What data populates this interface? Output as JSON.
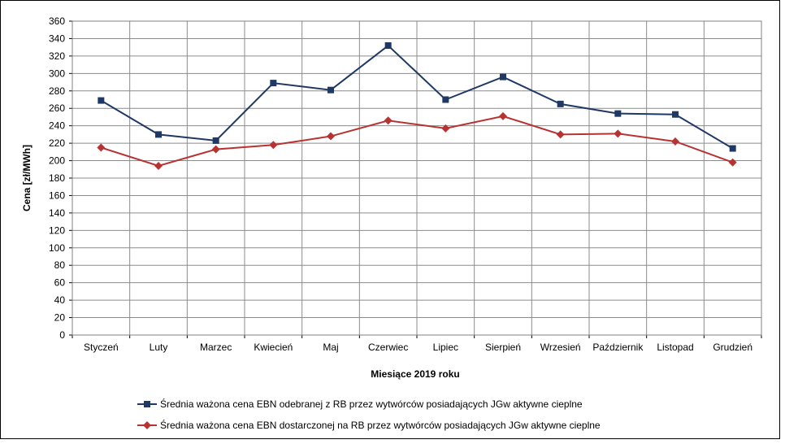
{
  "chart_data": {
    "type": "line",
    "title": "",
    "xlabel": "Miesiące 2019  roku",
    "ylabel": "Cena [zł/MWh]",
    "ylim": [
      0,
      360
    ],
    "ytick_step": 20,
    "grid": true,
    "legend_position": "bottom",
    "categories": [
      "Styczeń",
      "Luty",
      "Marzec",
      "Kwiecień",
      "Maj",
      "Czerwiec",
      "Lipiec",
      "Sierpień",
      "Wrzesień",
      "Październik",
      "Listopad",
      "Grudzień"
    ],
    "series": [
      {
        "name": "Średnia ważona cena EBN odebranej z RB przez wytwórców posiadających JGw aktywne cieplne",
        "color": "#1F3864",
        "marker": "square",
        "values": [
          269,
          230,
          223,
          289,
          281,
          332,
          270,
          296,
          265,
          254,
          253,
          214
        ]
      },
      {
        "name": "Średnia ważona cena EBN dostarczonej na RB przez wytwórców posiadających JGw aktywne cieplne",
        "color": "#B83232",
        "marker": "diamond",
        "values": [
          215,
          194,
          213,
          218,
          228,
          246,
          237,
          251,
          230,
          231,
          222,
          198
        ]
      }
    ]
  }
}
